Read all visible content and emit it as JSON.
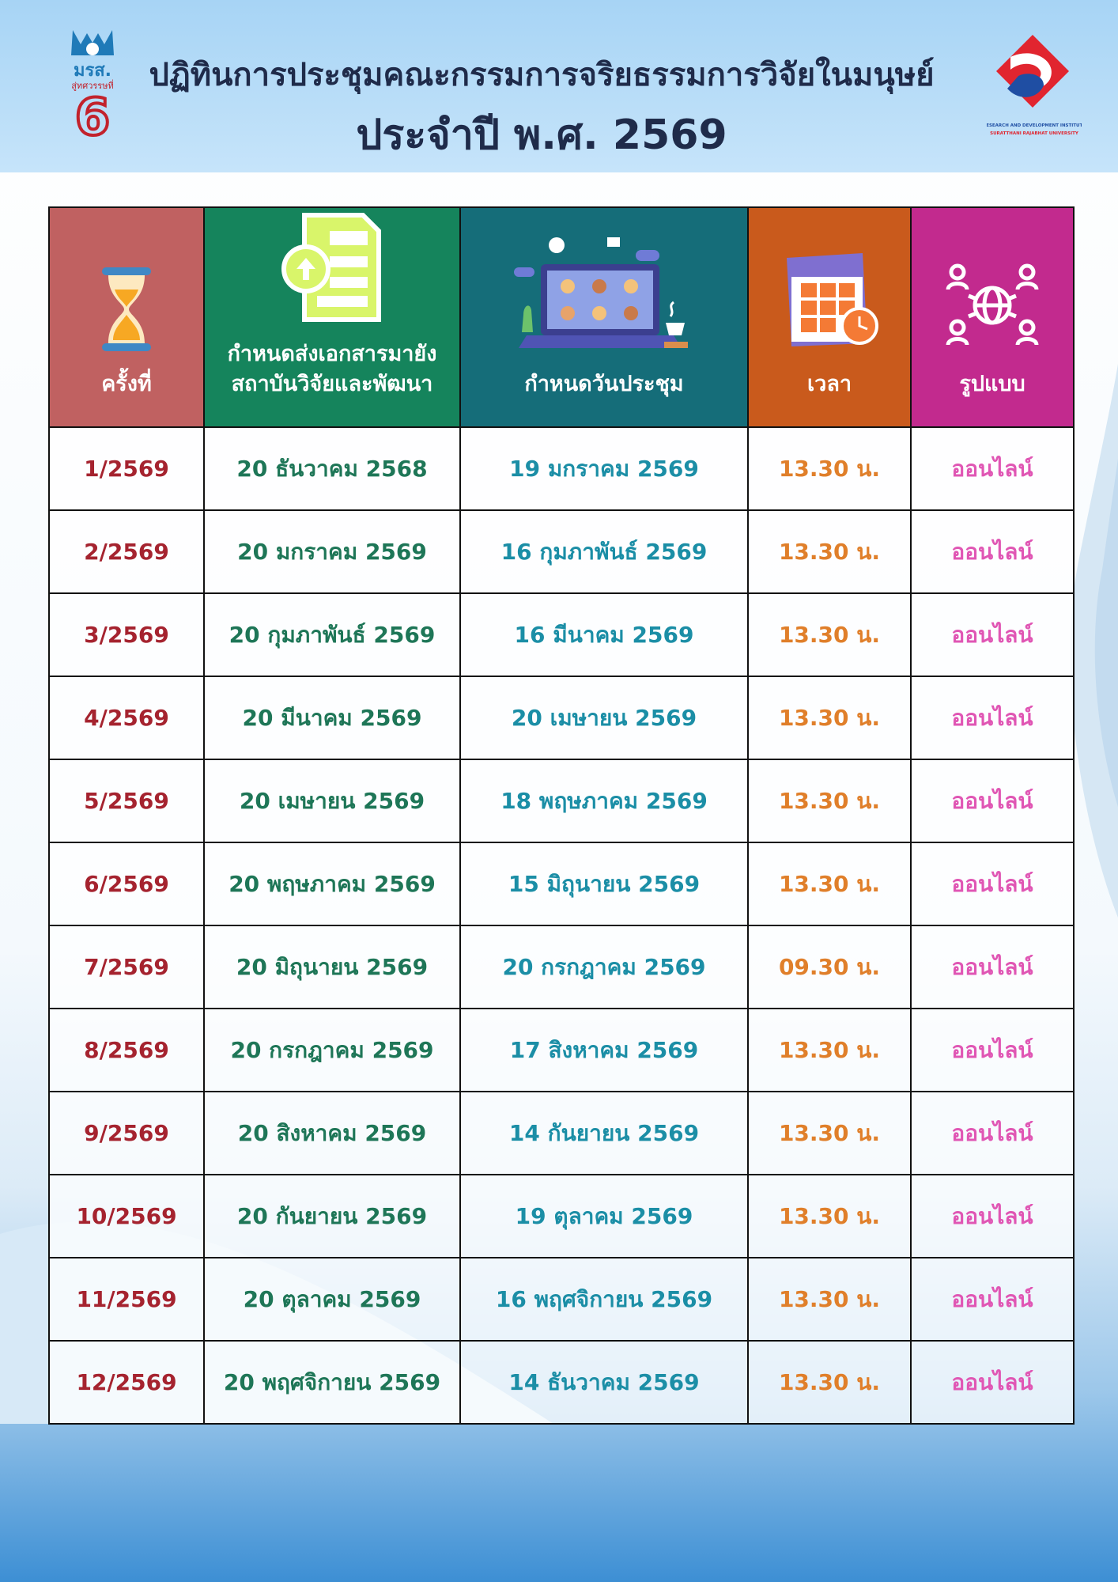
{
  "header": {
    "title_line1": "ปฏิทินการประชุมคณะกรรมการจริยธรรมการวิจัยในมนุษย์",
    "title_line2": "ประจำปี พ.ศ. 2569",
    "left_logo_text": "มรส. สู่ทศวรรษที่ 6",
    "right_logo_text": "RESEARCH AND DEVELOPMENT INSTITUTE SURATTHANI RAJABHAT UNIVERSITY"
  },
  "table": {
    "columns": [
      {
        "label": "ครั้งที่",
        "color": "#c06161",
        "icon": "hourglass-icon"
      },
      {
        "label": "กำหนดส่งเอกสารมายัง สถาบันวิจัยและพัฒนา",
        "color": "#15845c",
        "icon": "document-upload-icon"
      },
      {
        "label": "กำหนดวันประชุม",
        "color": "#156d79",
        "icon": "video-meeting-laptop-icon"
      },
      {
        "label": "เวลา",
        "color": "#c95a1c",
        "icon": "calendar-clock-icon"
      },
      {
        "label": "รูปแบบ",
        "color": "#c22a8e",
        "icon": "network-globe-icon"
      }
    ],
    "rows": [
      [
        "1/2569",
        "20 ธันวาคม 2568",
        "19 มกราคม 2569",
        "13.30 น.",
        "ออนไลน์"
      ],
      [
        "2/2569",
        "20 มกราคม 2569",
        "16 กุมภาพันธ์ 2569",
        "13.30 น.",
        "ออนไลน์"
      ],
      [
        "3/2569",
        "20 กุมภาพันธ์ 2569",
        "16 มีนาคม 2569",
        "13.30 น.",
        "ออนไลน์"
      ],
      [
        "4/2569",
        "20 มีนาคม 2569",
        "20 เมษายน 2569",
        "13.30 น.",
        "ออนไลน์"
      ],
      [
        "5/2569",
        "20 เมษายน 2569",
        "18 พฤษภาคม 2569",
        "13.30 น.",
        "ออนไลน์"
      ],
      [
        "6/2569",
        "20 พฤษภาคม 2569",
        "15 มิถุนายน 2569",
        "13.30 น.",
        "ออนไลน์"
      ],
      [
        "7/2569",
        "20 มิถุนายน 2569",
        "20 กรกฎาคม 2569",
        "09.30 น.",
        "ออนไลน์"
      ],
      [
        "8/2569",
        "20 กรกฎาคม 2569",
        "17 สิงหาคม 2569",
        "13.30 น.",
        "ออนไลน์"
      ],
      [
        "9/2569",
        "20 สิงหาคม 2569",
        "14 กันยายน 2569",
        "13.30 น.",
        "ออนไลน์"
      ],
      [
        "10/2569",
        "20 กันยายน 2569",
        "19 ตุลาคม 2569",
        "13.30 น.",
        "ออนไลน์"
      ],
      [
        "11/2569",
        "20 ตุลาคม 2569",
        "16 พฤศจิกายน 2569",
        "13.30 น.",
        "ออนไลน์"
      ],
      [
        "12/2569",
        "20 พฤศจิกายน 2569",
        "14 ธันวาคม 2569",
        "13.30 น.",
        "ออนไลน์"
      ]
    ]
  }
}
